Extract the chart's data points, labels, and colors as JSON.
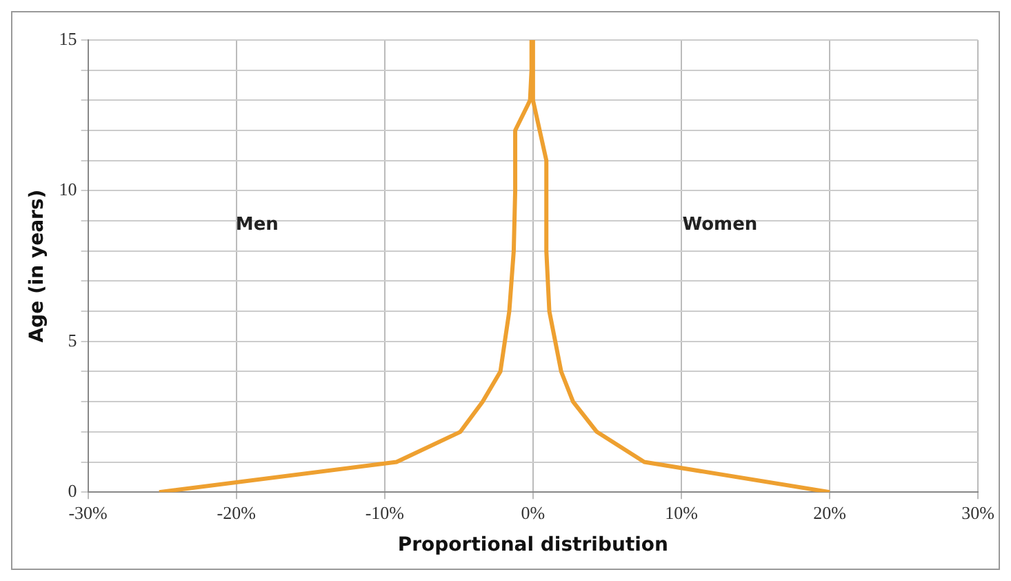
{
  "chart_data": {
    "type": "line",
    "xlabel": "Proportional distribution",
    "ylabel": "Age (in years)",
    "series": [
      {
        "color": "#eea030",
        "x": [
          -25.2,
          -9.2,
          -4.9,
          -3.4,
          -2.2,
          -1.6,
          -1.3,
          -1.2,
          -1.2,
          -0.2,
          -0.1,
          -0.1
        ],
        "values": [
          0,
          1,
          2,
          3,
          4,
          6,
          8,
          10,
          12,
          13,
          14,
          15
        ]
      },
      {
        "color": "#eea030",
        "x": [
          20,
          7.5,
          4.3,
          2.7,
          1.9,
          1.1,
          0.9,
          0.9,
          0.0,
          0.0
        ],
        "values": [
          0,
          1,
          2,
          3,
          4,
          6,
          8,
          11,
          13,
          15
        ]
      }
    ],
    "xlim": [
      -30,
      30
    ],
    "xticks": [
      {
        "value": -30,
        "label": "-30%"
      },
      {
        "value": -20,
        "label": "-20%"
      },
      {
        "value": -10,
        "label": "-10%"
      },
      {
        "value": 0,
        "label": "0%"
      },
      {
        "value": 10,
        "label": "10%"
      },
      {
        "value": 20,
        "label": "20%"
      },
      {
        "value": 30,
        "label": "30%"
      }
    ],
    "ylim": [
      0,
      15
    ],
    "yticks": [
      0,
      {
        "value": 1,
        "label": null
      },
      {
        "value": 2,
        "label": null
      },
      {
        "value": 3,
        "label": null
      },
      {
        "value": 4,
        "label": null
      },
      5,
      {
        "value": 6,
        "label": null
      },
      {
        "value": 7,
        "label": null
      },
      {
        "value": 8,
        "label": null
      },
      {
        "value": 9,
        "label": null
      },
      10,
      {
        "value": 11,
        "label": null
      },
      {
        "value": 12,
        "label": null
      },
      {
        "value": 13,
        "label": null
      },
      {
        "value": 14,
        "label": null
      },
      15
    ],
    "annotations": [
      "Men",
      "Women"
    ],
    "grid": true,
    "legend": false,
    "marker": "none",
    "line_style": "solid"
  }
}
